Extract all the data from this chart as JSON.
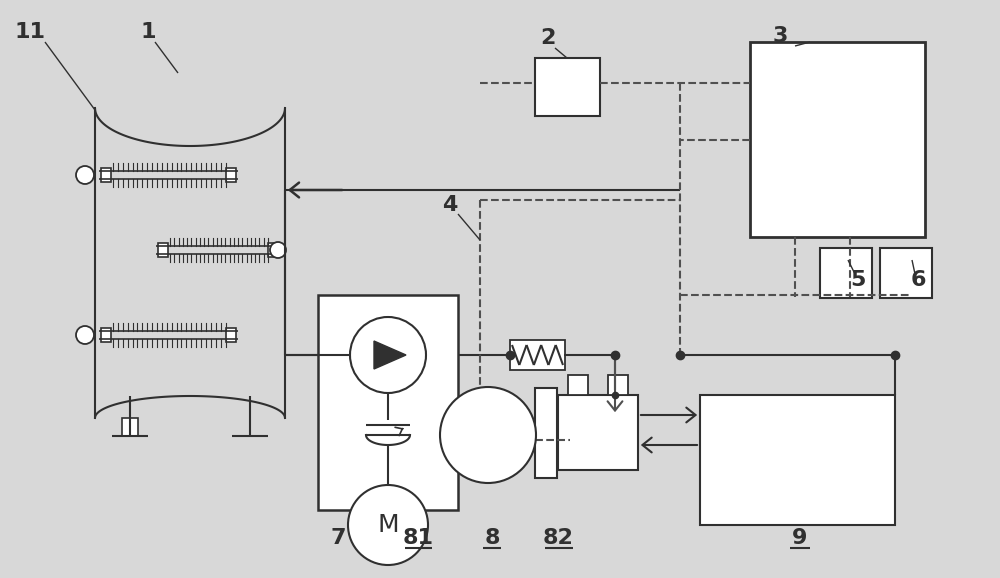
{
  "bg_color": "#d8d8d8",
  "line_color": "#303030",
  "dashed_color": "#505050",
  "fig_w": 10.0,
  "fig_h": 5.78
}
